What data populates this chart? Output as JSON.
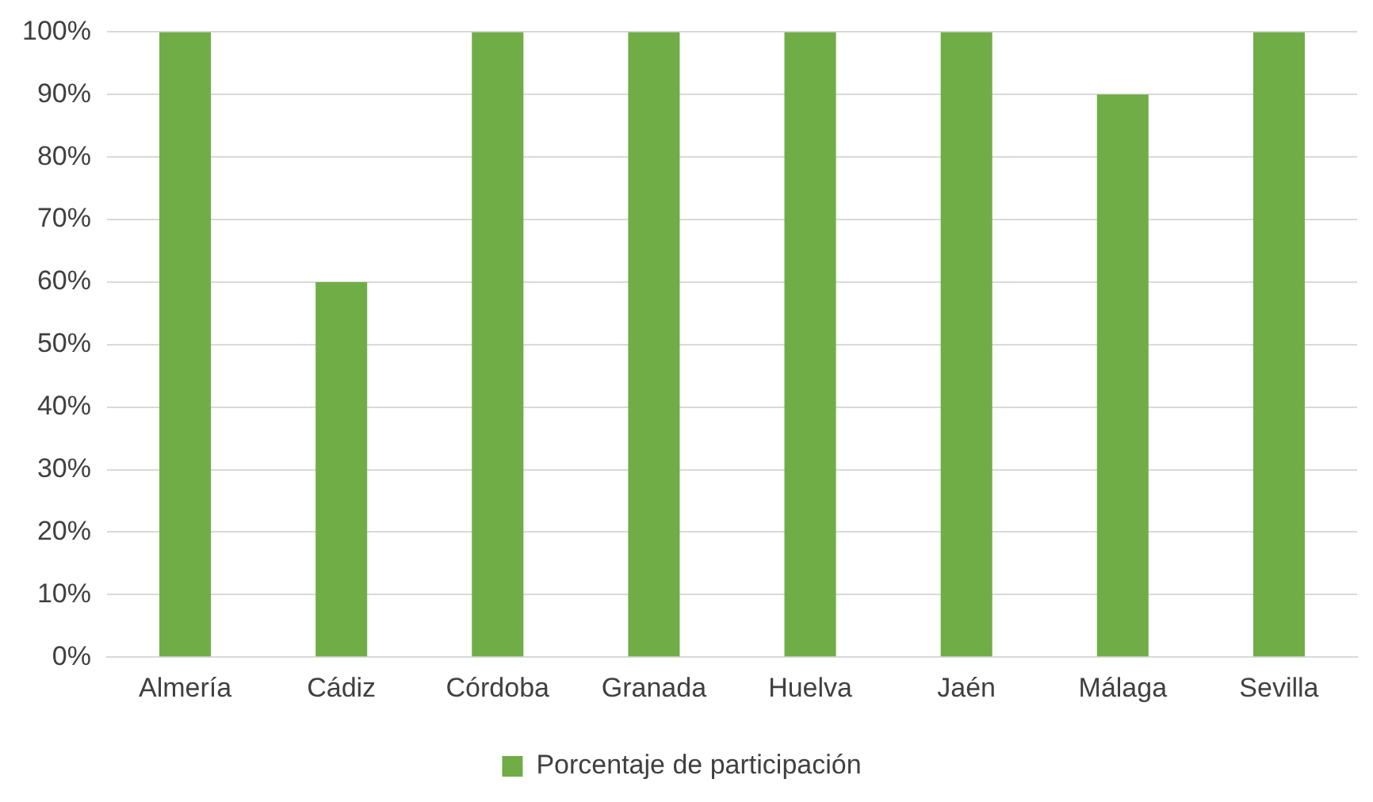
{
  "chart_data": {
    "type": "bar",
    "categories": [
      "Almería",
      "Cádiz",
      "Córdoba",
      "Granada",
      "Huelva",
      "Jaén",
      "Málaga",
      "Sevilla"
    ],
    "series": [
      {
        "name": "Porcentaje de participación",
        "color": "#70ad47",
        "values": [
          100,
          60,
          100,
          100,
          100,
          100,
          90,
          100
        ]
      }
    ],
    "ylim": [
      0,
      100
    ],
    "yticks": [
      {
        "value": 0,
        "label": "0%"
      },
      {
        "value": 10,
        "label": "10%"
      },
      {
        "value": 20,
        "label": "20%"
      },
      {
        "value": 30,
        "label": "30%"
      },
      {
        "value": 40,
        "label": "40%"
      },
      {
        "value": 50,
        "label": "50%"
      },
      {
        "value": 60,
        "label": "60%"
      },
      {
        "value": 70,
        "label": "70%"
      },
      {
        "value": 80,
        "label": "80%"
      },
      {
        "value": 90,
        "label": "90%"
      },
      {
        "value": 100,
        "label": "100%"
      }
    ],
    "grid": "y",
    "legend": "bottom"
  }
}
